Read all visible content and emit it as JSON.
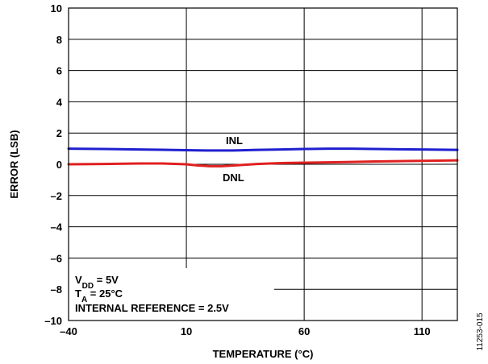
{
  "chart_data": {
    "type": "line",
    "xlabel": "TEMPERATURE (°C)",
    "ylabel": "ERROR (LSB)",
    "xlim": [
      -40,
      125
    ],
    "ylim": [
      -10,
      10
    ],
    "xticks": [
      -40,
      10,
      60,
      110
    ],
    "xtick_labels": [
      "–40",
      "10",
      "60",
      "110"
    ],
    "yticks": [
      10,
      8,
      6,
      4,
      2,
      0,
      -2,
      -4,
      -6,
      -8,
      -10
    ],
    "ytick_labels": [
      "10",
      "8",
      "6",
      "4",
      "2",
      "0",
      "–2",
      "–4",
      "–6",
      "–8",
      "–10"
    ],
    "grid": true,
    "series": [
      {
        "name": "INL",
        "color": "#1f1fd0",
        "x": [
          -40,
          -25,
          -10,
          0,
          10,
          20,
          30,
          40,
          50,
          60,
          70,
          80,
          90,
          100,
          110,
          125
        ],
        "y": [
          1.0,
          0.98,
          0.95,
          0.93,
          0.9,
          0.88,
          0.88,
          0.92,
          0.95,
          0.98,
          1.0,
          1.0,
          0.98,
          0.96,
          0.95,
          0.92
        ]
      },
      {
        "name": "DNL",
        "color": "#e02020",
        "x": [
          -40,
          -25,
          -10,
          0,
          10,
          15,
          20,
          25,
          30,
          40,
          50,
          60,
          70,
          80,
          90,
          100,
          110,
          125
        ],
        "y": [
          0.0,
          0.02,
          0.05,
          0.05,
          0.0,
          -0.08,
          -0.12,
          -0.12,
          -0.08,
          0.02,
          0.08,
          0.1,
          0.12,
          0.15,
          0.18,
          0.2,
          0.22,
          0.25
        ]
      }
    ],
    "annotations": {
      "vdd": {
        "main": "V",
        "sub": "DD",
        "rest": " = 5V"
      },
      "ta": {
        "main": "T",
        "sub": "A",
        "rest": " = 25°C"
      },
      "ref": "INTERNAL REFERENCE = 2.5V"
    },
    "figure_id": "11253-015"
  }
}
